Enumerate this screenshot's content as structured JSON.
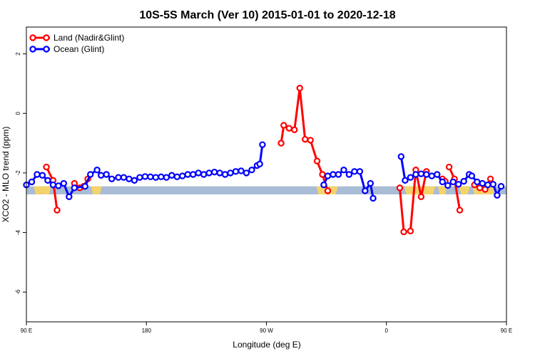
{
  "chart_data": {
    "type": "line",
    "title": "10S-5S March (Ver 10)   2015-01-01 to 2020-12-18",
    "xlabel": "Longitude (deg E)",
    "ylabel": "XCO2 - MLO trend (ppm)",
    "xlim": [
      90,
      450
    ],
    "ylim": [
      -7,
      2.9
    ],
    "x_ticks": [
      {
        "value": 90,
        "label": "90 E"
      },
      {
        "value": 180,
        "label": "180"
      },
      {
        "value": 270,
        "label": "90 W"
      },
      {
        "value": 360,
        "label": "0"
      },
      {
        "value": 450,
        "label": "90 E"
      },
      {
        "value": 540,
        "label": "180"
      }
    ],
    "y_ticks": [
      {
        "value": 2,
        "label": "2"
      },
      {
        "value": 0,
        "label": "0"
      },
      {
        "value": -2,
        "label": "-2"
      },
      {
        "value": -4,
        "label": "-4"
      },
      {
        "value": -6,
        "label": "-6"
      }
    ],
    "legend": "top-left",
    "grid": false,
    "background_band": {
      "y_range": [
        -2.72,
        -2.45
      ],
      "ocean_color": "#a8bcd6",
      "land_color": "#f5d36b",
      "land_x_ranges": [
        [
          97,
          101
        ],
        [
          102,
          107
        ],
        [
          140,
          145
        ],
        [
          309,
          322
        ],
        [
          375,
          395
        ],
        [
          400,
          404
        ],
        [
          416,
          421
        ],
        [
          426,
          440
        ]
      ]
    },
    "series": [
      {
        "name": "Land (Nadir&Glint)",
        "color": "#ff0000",
        "segments": [
          [
            [
              105,
              -1.8
            ],
            [
              110,
              -2.25
            ],
            [
              113,
              -3.25
            ]
          ],
          [
            [
              126,
              -2.35
            ],
            [
              130,
              -2.5
            ],
            [
              133,
              -2.45
            ],
            [
              136,
              -2.2
            ]
          ],
          [
            [
              281,
              -1.0
            ],
            [
              283,
              -0.4
            ],
            [
              287,
              -0.5
            ],
            [
              291,
              -0.55
            ],
            [
              295,
              0.85
            ],
            [
              299,
              -0.87
            ],
            [
              303,
              -0.9
            ],
            [
              308,
              -1.6
            ],
            [
              312,
              -2.05
            ],
            [
              316,
              -2.6
            ]
          ],
          [
            [
              370,
              -2.5
            ],
            [
              373,
              -3.98
            ],
            [
              378,
              -3.95
            ],
            [
              382,
              -1.9
            ],
            [
              386,
              -2.8
            ],
            [
              390,
              -1.95
            ]
          ],
          [
            [
              402,
              -2.2
            ],
            [
              404,
              -2.28
            ]
          ],
          [
            [
              407,
              -1.8
            ],
            [
              411,
              -2.2
            ],
            [
              415,
              -3.25
            ]
          ],
          [
            [
              426,
              -2.4
            ],
            [
              430,
              -2.5
            ],
            [
              434,
              -2.55
            ],
            [
              438,
              -2.2
            ]
          ]
        ]
      },
      {
        "name": "Ocean (Glint)",
        "color": "#0000ff",
        "segments": [
          [
            [
              90,
              -2.4
            ],
            [
              94,
              -2.3
            ],
            [
              98,
              -2.05
            ],
            [
              102,
              -2.08
            ],
            [
              106,
              -2.25
            ],
            [
              110,
              -2.4
            ],
            [
              114,
              -2.43
            ],
            [
              118,
              -2.35
            ],
            [
              122,
              -2.8
            ],
            [
              126,
              -2.5
            ],
            [
              134,
              -2.45
            ],
            [
              138,
              -2.05
            ],
            [
              143,
              -1.9
            ],
            [
              146,
              -2.08
            ],
            [
              150,
              -2.05
            ],
            [
              154,
              -2.2
            ],
            [
              159,
              -2.15
            ],
            [
              163,
              -2.15
            ],
            [
              167,
              -2.2
            ],
            [
              171,
              -2.25
            ],
            [
              175,
              -2.15
            ],
            [
              179,
              -2.12
            ],
            [
              183,
              -2.13
            ],
            [
              187,
              -2.15
            ],
            [
              191,
              -2.13
            ],
            [
              195,
              -2.15
            ],
            [
              199,
              -2.08
            ],
            [
              203,
              -2.13
            ],
            [
              207,
              -2.1
            ],
            [
              211,
              -2.05
            ],
            [
              215,
              -2.05
            ],
            [
              219,
              -2.0
            ],
            [
              223,
              -2.05
            ],
            [
              227,
              -2.0
            ],
            [
              231,
              -1.97
            ],
            [
              235,
              -2.0
            ],
            [
              239,
              -2.05
            ],
            [
              243,
              -2.0
            ],
            [
              247,
              -1.95
            ],
            [
              251,
              -1.93
            ],
            [
              255,
              -2.0
            ],
            [
              259,
              -1.9
            ],
            [
              263,
              -1.75
            ],
            [
              265,
              -1.7
            ],
            [
              267,
              -1.05
            ]
          ],
          [
            [
              313,
              -2.4
            ],
            [
              316,
              -2.1
            ],
            [
              320,
              -2.05
            ],
            [
              324,
              -2.05
            ],
            [
              328,
              -1.9
            ],
            [
              332,
              -2.05
            ],
            [
              336,
              -1.95
            ],
            [
              340,
              -1.95
            ],
            [
              344,
              -2.6
            ],
            [
              348,
              -2.35
            ],
            [
              350,
              -2.85
            ]
          ],
          [
            [
              371,
              -1.45
            ],
            [
              374,
              -2.25
            ],
            [
              378,
              -2.15
            ],
            [
              382,
              -2.05
            ],
            [
              386,
              -2.03
            ],
            [
              390,
              -2.05
            ],
            [
              394,
              -2.1
            ],
            [
              398,
              -2.05
            ],
            [
              402,
              -2.3
            ],
            [
              406,
              -2.42
            ],
            [
              410,
              -2.3
            ],
            [
              414,
              -2.38
            ],
            [
              418,
              -2.28
            ],
            [
              422,
              -2.05
            ],
            [
              424,
              -2.1
            ],
            [
              428,
              -2.3
            ],
            [
              432,
              -2.35
            ],
            [
              436,
              -2.4
            ],
            [
              440,
              -2.38
            ],
            [
              443,
              -2.75
            ],
            [
              446,
              -2.45
            ]
          ]
        ]
      }
    ]
  }
}
